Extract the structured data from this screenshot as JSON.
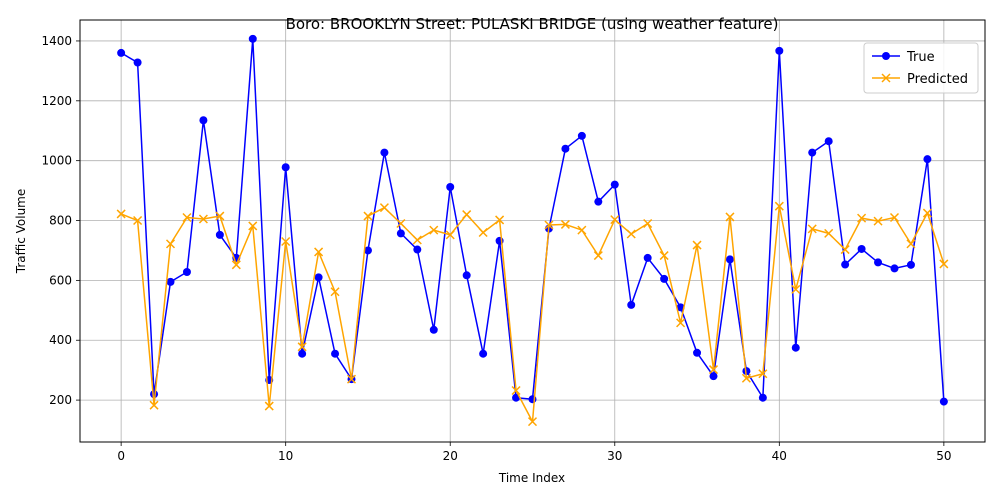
{
  "chart_data": {
    "type": "line",
    "title": "Boro: BROOKLYN Street: PULASKI BRIDGE (using weather feature)",
    "xlabel": "Time Index",
    "ylabel": "Traffic Volume",
    "xlim": [
      -2.5,
      52.5
    ],
    "ylim": [
      60,
      1470
    ],
    "xticks": [
      0,
      10,
      20,
      30,
      40,
      50
    ],
    "yticks": [
      200,
      400,
      600,
      800,
      1000,
      1200,
      1400
    ],
    "grid": true,
    "legend": "top-right",
    "series": [
      {
        "name": "True",
        "color": "#0000ff",
        "marker": "circle",
        "values": [
          1360,
          1328,
          220,
          595,
          628,
          1135,
          752,
          675,
          1407,
          267,
          978,
          355,
          610,
          355,
          270,
          700,
          1027,
          757,
          703,
          435,
          912,
          617,
          355,
          732,
          208,
          203,
          773,
          1040,
          1083,
          863,
          920,
          518,
          675,
          605,
          510,
          358,
          280,
          670,
          297,
          208,
          1367,
          375,
          1027,
          1065,
          653,
          705,
          660,
          640,
          652,
          1005,
          195
        ]
      },
      {
        "name": "Predicted",
        "color": "#ffa500",
        "marker": "x",
        "values": [
          822,
          800,
          183,
          722,
          810,
          805,
          815,
          652,
          782,
          180,
          730,
          378,
          695,
          562,
          270,
          815,
          843,
          790,
          735,
          768,
          752,
          820,
          760,
          802,
          232,
          128,
          785,
          787,
          768,
          683,
          803,
          755,
          790,
          683,
          458,
          718,
          302,
          812,
          273,
          288,
          848,
          570,
          772,
          757,
          703,
          808,
          798,
          810,
          722,
          825,
          655
        ]
      }
    ]
  }
}
